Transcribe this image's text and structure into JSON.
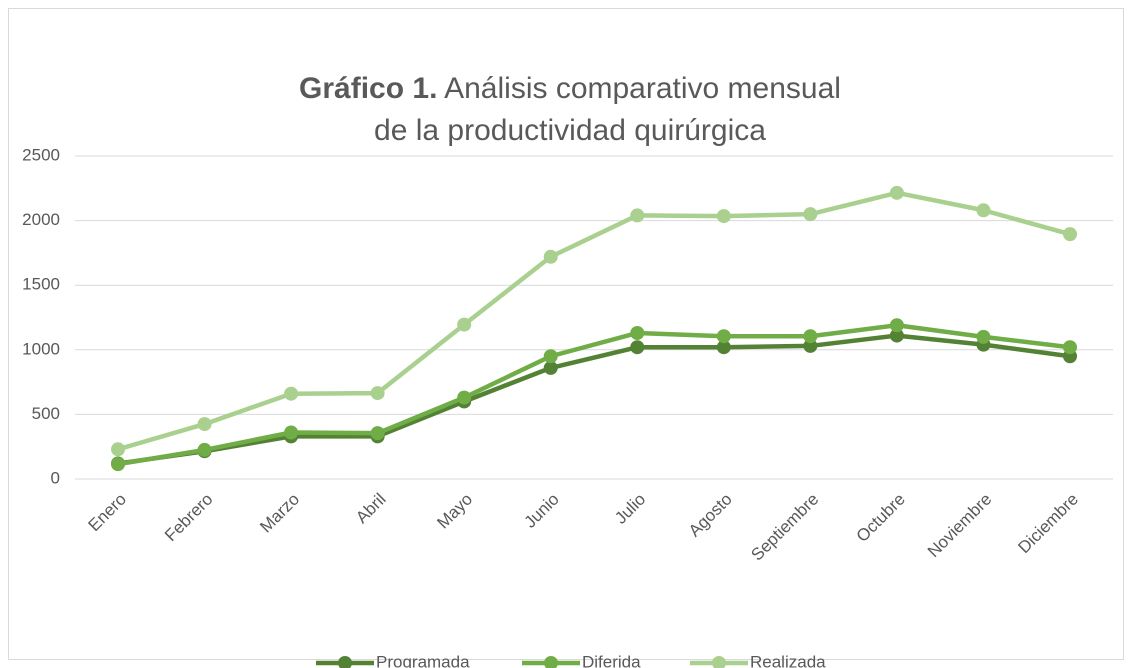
{
  "chart_data": {
    "type": "line",
    "title_bold": "Gráfico 1.",
    "title": "Análisis comparativo mensual de la productividad quirúrgica",
    "categories": [
      "Enero",
      "Febrero",
      "Marzo",
      "Abril",
      "Mayo",
      "Junio",
      "Julio",
      "Agosto",
      "Septiembre",
      "Octubre",
      "Noviembre",
      "Diciembre"
    ],
    "series": [
      {
        "name": "Programada",
        "color": "#548235",
        "values": [
          120,
          215,
          330,
          330,
          600,
          860,
          1020,
          1020,
          1030,
          1110,
          1040,
          950
        ]
      },
      {
        "name": "Diferida",
        "color": "#70ad47",
        "values": [
          115,
          225,
          360,
          355,
          630,
          950,
          1130,
          1105,
          1105,
          1190,
          1100,
          1020
        ]
      },
      {
        "name": "Realizada",
        "color": "#a9d08e",
        "values": [
          230,
          425,
          660,
          665,
          1195,
          1720,
          2040,
          2035,
          2050,
          2215,
          2080,
          1895
        ]
      }
    ],
    "ylim": [
      0,
      2500
    ],
    "yticks": [
      0,
      500,
      1000,
      1500,
      2000,
      2500
    ],
    "grid": true,
    "legend": "bottom"
  }
}
